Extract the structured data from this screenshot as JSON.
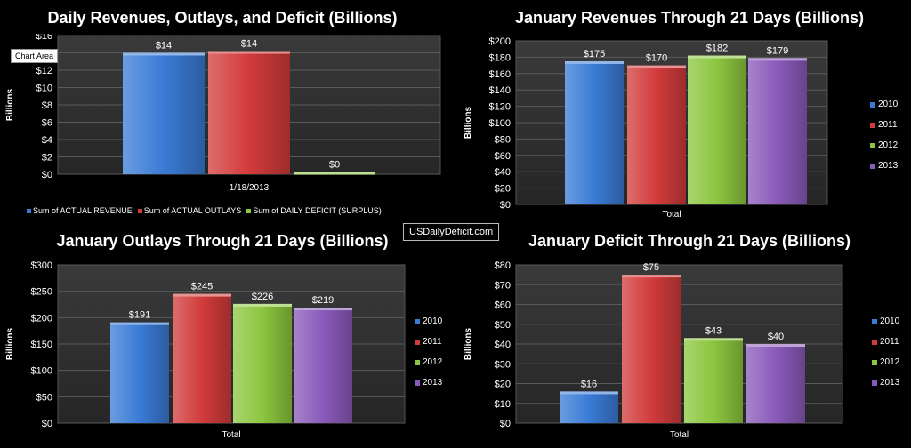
{
  "tooltip": "Chart Area",
  "watermark": "USDailyDeficit.com",
  "colors": {
    "blue": "#3a7bd5",
    "red": "#d23b3b",
    "green": "#8cc63f",
    "purple": "#8a5aba"
  },
  "chart_data": [
    {
      "type": "bar",
      "title": "Daily Revenues, Outlays, and Deficit (Billions)",
      "ylabel": "Billions",
      "xlabel": "",
      "categories": [
        "1/18/2013"
      ],
      "ylim": [
        0,
        16
      ],
      "yticks": [
        "$0",
        "$2",
        "$4",
        "$6",
        "$8",
        "$10",
        "$12",
        "$14",
        "$16"
      ],
      "series": [
        {
          "name": "Sum of ACTUAL REVENUE",
          "values": [
            14
          ],
          "label": "$14",
          "color": "blue"
        },
        {
          "name": "Sum of ACTUAL OUTLAYS",
          "values": [
            14.2
          ],
          "label": "$14",
          "color": "red"
        },
        {
          "name": "Sum of DAILY DEFICIT (SURPLUS)",
          "values": [
            0.25
          ],
          "label": "$0",
          "color": "green"
        }
      ],
      "legend": "bottom",
      "grid": true
    },
    {
      "type": "bar",
      "title": "January Revenues Through 21 Days (Billions)",
      "ylabel": "Billions",
      "xlabel": "",
      "categories": [
        "Total"
      ],
      "ylim": [
        0,
        200
      ],
      "yticks": [
        "$0",
        "$20",
        "$40",
        "$60",
        "$80",
        "$100",
        "$120",
        "$140",
        "$160",
        "$180",
        "$200"
      ],
      "series": [
        {
          "name": "2010",
          "values": [
            175
          ],
          "label": "$175",
          "color": "blue"
        },
        {
          "name": "2011",
          "values": [
            170
          ],
          "label": "$170",
          "color": "red"
        },
        {
          "name": "2012",
          "values": [
            182
          ],
          "label": "$182",
          "color": "green"
        },
        {
          "name": "2013",
          "values": [
            179
          ],
          "label": "$179",
          "color": "purple"
        }
      ],
      "legend": "right",
      "grid": true
    },
    {
      "type": "bar",
      "title": "January Outlays Through 21 Days (Billions)",
      "ylabel": "Billions",
      "xlabel": "",
      "categories": [
        "Total"
      ],
      "ylim": [
        0,
        300
      ],
      "yticks": [
        "$0",
        "$50",
        "$100",
        "$150",
        "$200",
        "$250",
        "$300"
      ],
      "series": [
        {
          "name": "2010",
          "values": [
            191
          ],
          "label": "$191",
          "color": "blue"
        },
        {
          "name": "2011",
          "values": [
            245
          ],
          "label": "$245",
          "color": "red"
        },
        {
          "name": "2012",
          "values": [
            226
          ],
          "label": "$226",
          "color": "green"
        },
        {
          "name": "2013",
          "values": [
            219
          ],
          "label": "$219",
          "color": "purple"
        }
      ],
      "legend": "right",
      "grid": true
    },
    {
      "type": "bar",
      "title": "January Deficit Through 21 Days (Billions)",
      "ylabel": "Billions",
      "xlabel": "",
      "categories": [
        "Total"
      ],
      "ylim": [
        0,
        80
      ],
      "yticks": [
        "$0",
        "$10",
        "$20",
        "$30",
        "$40",
        "$50",
        "$60",
        "$70",
        "$80"
      ],
      "series": [
        {
          "name": "2010",
          "values": [
            16
          ],
          "label": "$16",
          "color": "blue"
        },
        {
          "name": "2011",
          "values": [
            75
          ],
          "label": "$75",
          "color": "red"
        },
        {
          "name": "2012",
          "values": [
            43
          ],
          "label": "$43",
          "color": "green"
        },
        {
          "name": "2013",
          "values": [
            40
          ],
          "label": "$40",
          "color": "purple"
        }
      ],
      "legend": "right",
      "grid": true
    }
  ]
}
